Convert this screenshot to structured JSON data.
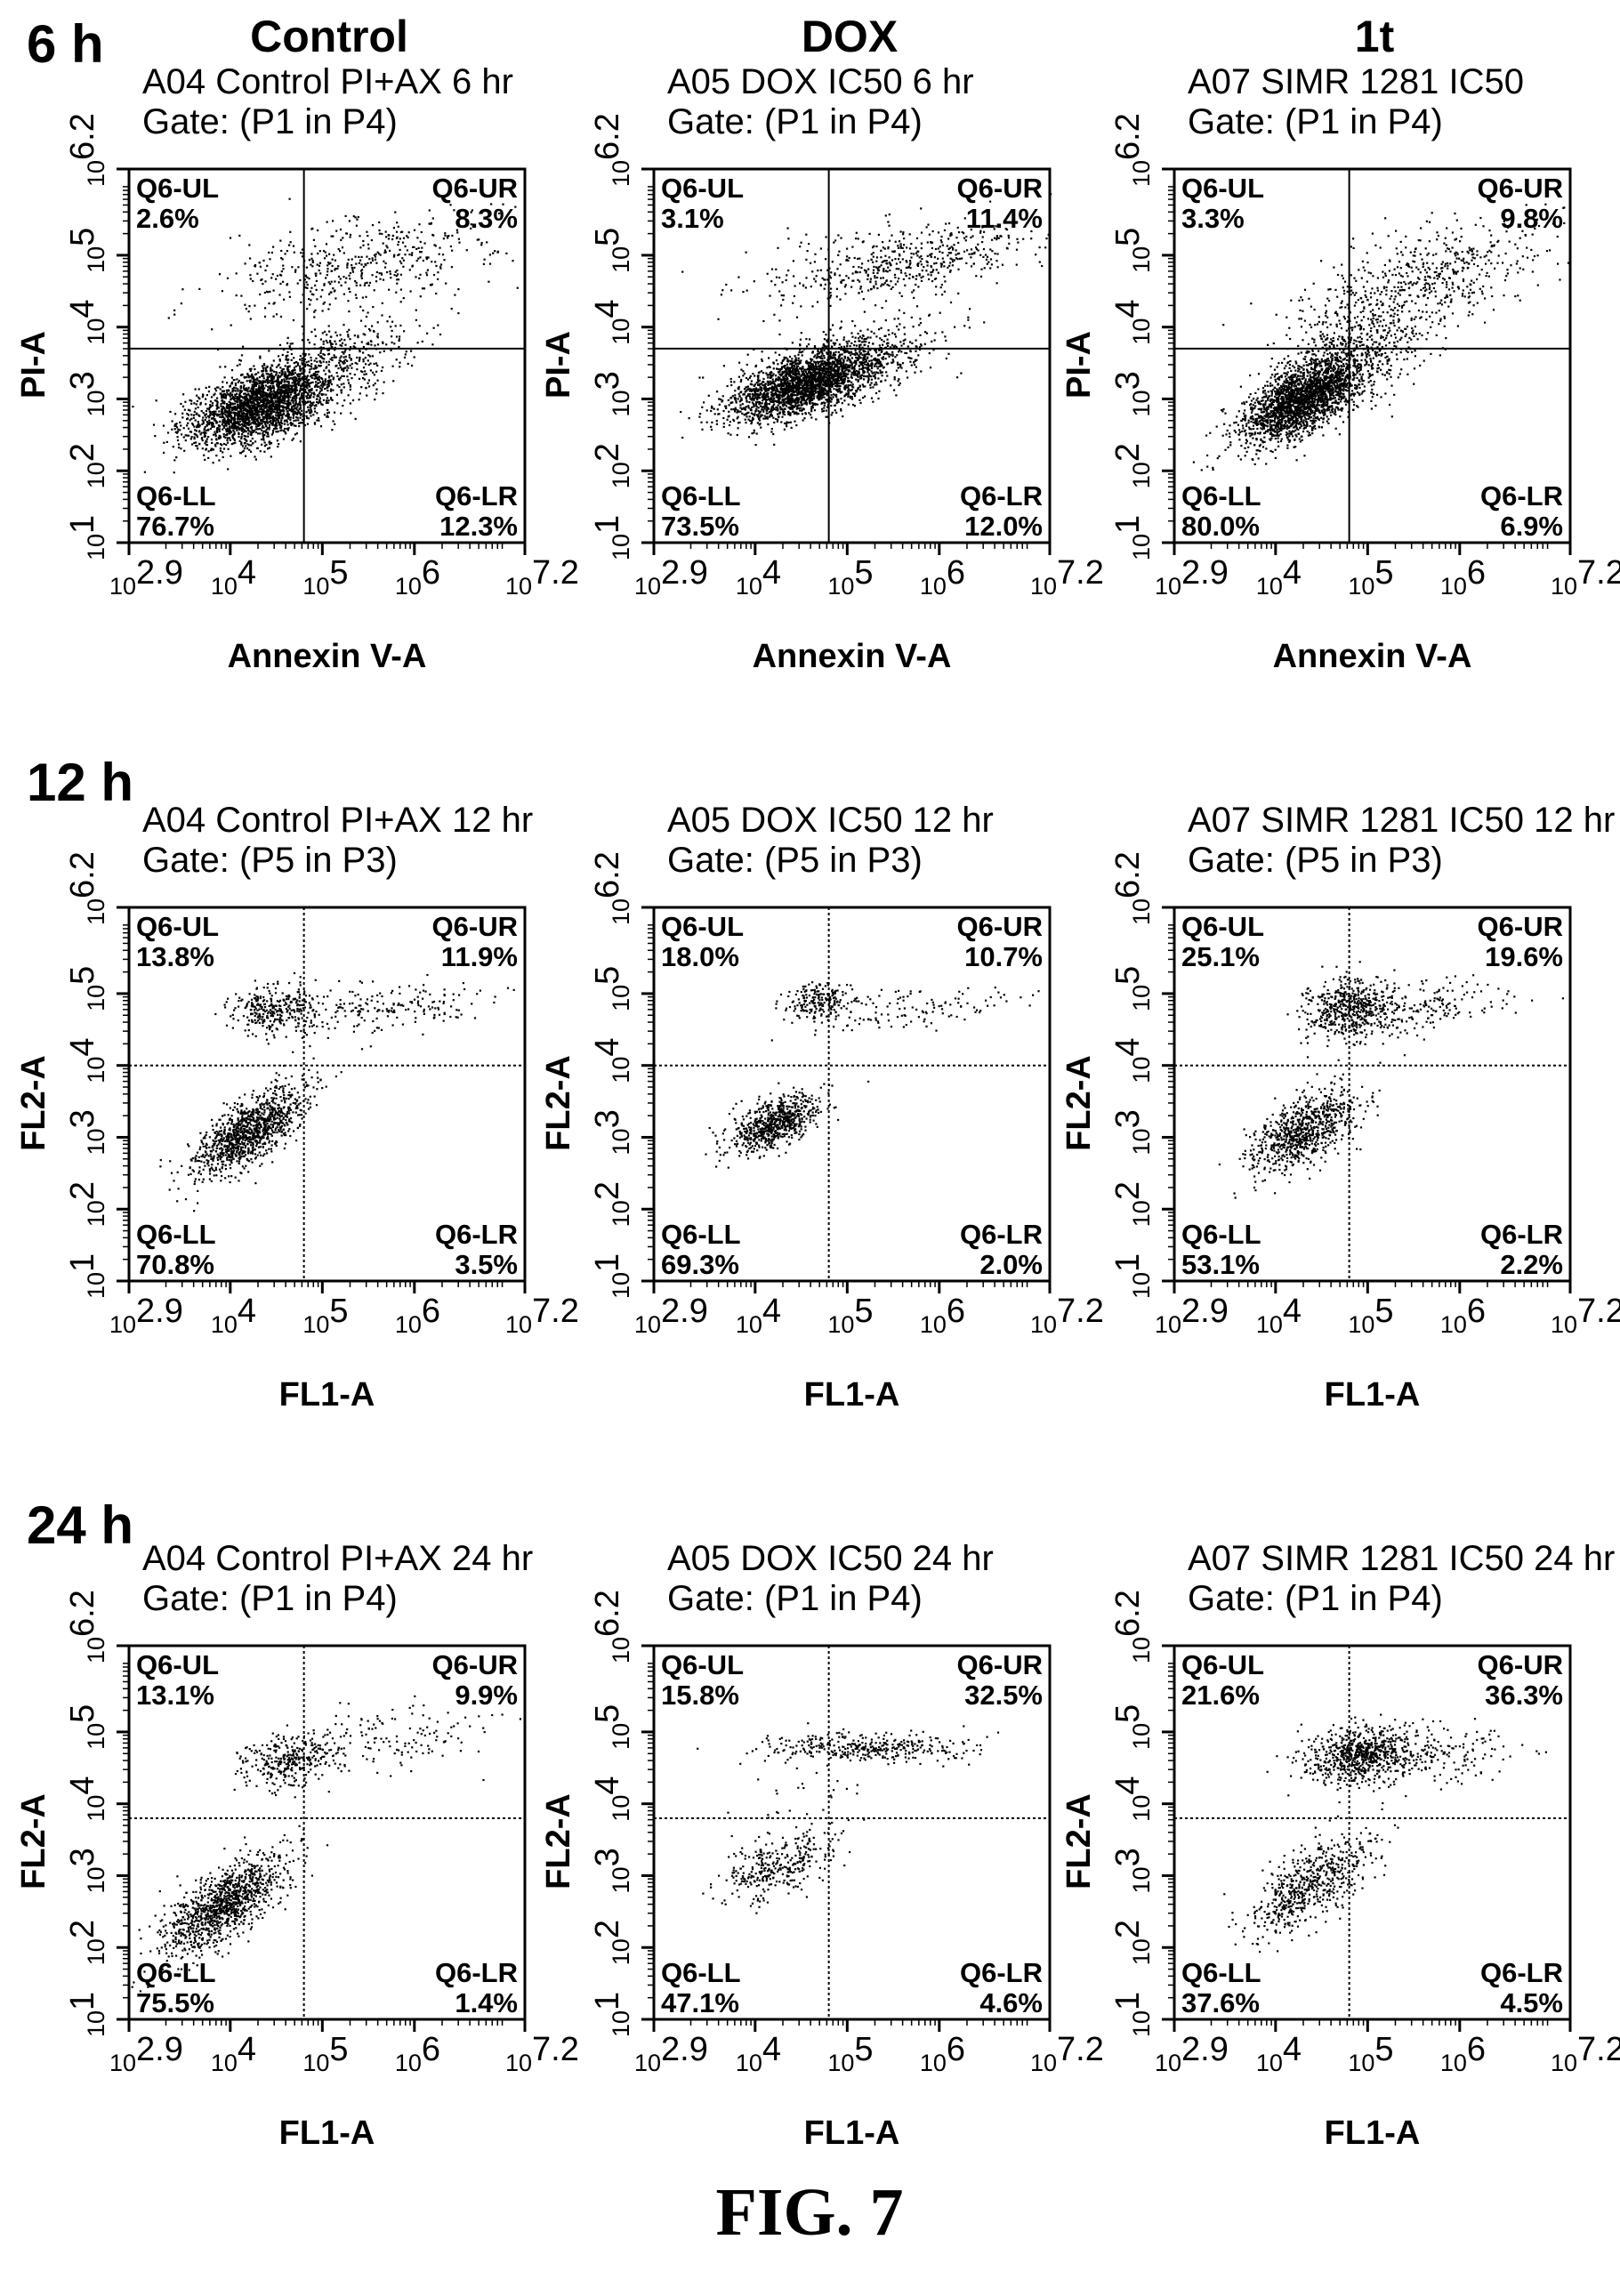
{
  "figure_caption": "FIG. 7",
  "columns": [
    "Control",
    "DOX",
    "1t"
  ],
  "rows": [
    {
      "label": "6 h",
      "ylabel": "PI-A",
      "xlabel": "Annexin V-A",
      "gate_style": "solid"
    },
    {
      "label": "12 h",
      "ylabel": "FL2-A",
      "xlabel": "FL1-A",
      "gate_style": "dotted"
    },
    {
      "label": "24 h",
      "ylabel": "FL2-A",
      "xlabel": "FL1-A",
      "gate_style": "dotted"
    }
  ],
  "chart_data": [
    {
      "type": "scatter",
      "title": "A04 Control PI+AX 6 hr",
      "subtitle": "Gate: (P1 in P4)",
      "xlabel": "Annexin V-A",
      "ylabel": "PI-A",
      "xscale": "log",
      "yscale": "log",
      "xlim_exp": [
        2.9,
        7.2
      ],
      "ylim_exp": [
        1,
        6.2
      ],
      "x_ticks": [
        "2.9",
        "4",
        "5",
        "6",
        "7.2"
      ],
      "y_ticks": [
        "1",
        "2",
        "3",
        "4",
        "5",
        "6.2"
      ],
      "gate_log10": {
        "x": 4.8,
        "y": 3.7
      },
      "quadrants": {
        "UL": {
          "name": "Q6-UL",
          "value": "2.6%"
        },
        "UR": {
          "name": "Q6-UR",
          "value": "8.3%"
        },
        "LL": {
          "name": "Q6-LL",
          "value": "76.7%"
        },
        "LR": {
          "name": "Q6-LR",
          "value": "12.3%"
        }
      },
      "populations": [
        {
          "x": 4.3,
          "y": 2.9,
          "sx": 0.38,
          "sy": 0.28,
          "n": 2200,
          "r": 0.5
        },
        {
          "x": 5.4,
          "y": 4.9,
          "sx": 0.8,
          "sy": 0.35,
          "n": 500,
          "r": 0.5
        },
        {
          "x": 4.9,
          "y": 3.4,
          "sx": 0.55,
          "sy": 0.35,
          "n": 600,
          "r": 0.6
        }
      ]
    },
    {
      "type": "scatter",
      "title": "A05 DOX IC50 6 hr",
      "subtitle": "Gate: (P1 in P4)",
      "xlabel": "Annexin V-A",
      "ylabel": "PI-A",
      "xscale": "log",
      "yscale": "log",
      "xlim_exp": [
        2.9,
        7.2
      ],
      "ylim_exp": [
        1,
        6.2
      ],
      "x_ticks": [
        "2.9",
        "4",
        "5",
        "6",
        "7.2"
      ],
      "y_ticks": [
        "1",
        "2",
        "3",
        "4",
        "5",
        "6.2"
      ],
      "gate_log10": {
        "x": 4.8,
        "y": 3.7
      },
      "quadrants": {
        "UL": {
          "name": "Q6-UL",
          "value": "3.1%"
        },
        "UR": {
          "name": "Q6-UR",
          "value": "11.4%"
        },
        "LL": {
          "name": "Q6-LL",
          "value": "73.5%"
        },
        "LR": {
          "name": "Q6-LR",
          "value": "12.0%"
        }
      },
      "populations": [
        {
          "x": 4.5,
          "y": 3.2,
          "sx": 0.4,
          "sy": 0.25,
          "n": 2100,
          "r": 0.6
        },
        {
          "x": 5.6,
          "y": 4.9,
          "sx": 0.75,
          "sy": 0.3,
          "n": 550,
          "r": 0.5
        },
        {
          "x": 5.0,
          "y": 3.5,
          "sx": 0.5,
          "sy": 0.3,
          "n": 600,
          "r": 0.5
        }
      ]
    },
    {
      "type": "scatter",
      "title": "A07 SIMR 1281 IC50",
      "subtitle": "Gate: (P1 in P4)",
      "xlabel": "Annexin V-A",
      "ylabel": "PI-A",
      "xscale": "log",
      "yscale": "log",
      "xlim_exp": [
        2.9,
        7.2
      ],
      "ylim_exp": [
        1,
        6.2
      ],
      "x_ticks": [
        "2.9",
        "4",
        "5",
        "6",
        "7.2"
      ],
      "y_ticks": [
        "1",
        "2",
        "3",
        "4",
        "5",
        "6.2"
      ],
      "gate_log10": {
        "x": 4.8,
        "y": 3.7
      },
      "quadrants": {
        "UL": {
          "name": "Q6-UL",
          "value": "3.3%"
        },
        "UR": {
          "name": "Q6-UR",
          "value": "9.8%"
        },
        "LL": {
          "name": "Q6-LL",
          "value": "80.0%"
        },
        "LR": {
          "name": "Q6-LR",
          "value": "6.9%"
        }
      },
      "populations": [
        {
          "x": 4.3,
          "y": 3.0,
          "sx": 0.33,
          "sy": 0.3,
          "n": 2200,
          "r": 0.65
        },
        {
          "x": 5.5,
          "y": 4.6,
          "sx": 0.7,
          "sy": 0.45,
          "n": 600,
          "r": 0.6
        },
        {
          "x": 4.8,
          "y": 3.6,
          "sx": 0.45,
          "sy": 0.35,
          "n": 500,
          "r": 0.5
        }
      ]
    },
    {
      "type": "scatter",
      "title": "A04 Control PI+AX 12 hr",
      "subtitle": "Gate: (P5 in P3)",
      "xlabel": "FL1-A",
      "ylabel": "FL2-A",
      "xscale": "log",
      "yscale": "log",
      "xlim_exp": [
        2.9,
        7.2
      ],
      "ylim_exp": [
        1,
        6.2
      ],
      "x_ticks": [
        "2.9",
        "4",
        "5",
        "6",
        "7.2"
      ],
      "y_ticks": [
        "1",
        "2",
        "3",
        "4",
        "5",
        "6.2"
      ],
      "gate_log10": {
        "x": 4.8,
        "y": 4.0
      },
      "quadrants": {
        "UL": {
          "name": "Q6-UL",
          "value": "13.8%"
        },
        "UR": {
          "name": "Q6-UR",
          "value": "11.9%"
        },
        "LL": {
          "name": "Q6-LL",
          "value": "70.8%"
        },
        "LR": {
          "name": "Q6-LR",
          "value": "3.5%"
        }
      },
      "populations": [
        {
          "x": 4.2,
          "y": 3.1,
          "sx": 0.3,
          "sy": 0.3,
          "n": 1100,
          "r": 0.7
        },
        {
          "x": 4.5,
          "y": 4.8,
          "sx": 0.25,
          "sy": 0.17,
          "n": 300,
          "r": 0.1
        },
        {
          "x": 5.7,
          "y": 4.8,
          "sx": 0.6,
          "sy": 0.2,
          "n": 200,
          "r": 0.4
        }
      ]
    },
    {
      "type": "scatter",
      "title": "A05 DOX IC50 12 hr",
      "subtitle": "Gate: (P5 in P3)",
      "xlabel": "FL1-A",
      "ylabel": "FL2-A",
      "xscale": "log",
      "yscale": "log",
      "xlim_exp": [
        2.9,
        7.2
      ],
      "ylim_exp": [
        1,
        6.2
      ],
      "x_ticks": [
        "2.9",
        "4",
        "5",
        "6",
        "7.2"
      ],
      "y_ticks": [
        "1",
        "2",
        "3",
        "4",
        "5",
        "6.2"
      ],
      "gate_log10": {
        "x": 4.8,
        "y": 4.0
      },
      "quadrants": {
        "UL": {
          "name": "Q6-UL",
          "value": "18.0%"
        },
        "UR": {
          "name": "Q6-UR",
          "value": "10.7%"
        },
        "LL": {
          "name": "Q6-LL",
          "value": "69.3%"
        },
        "LR": {
          "name": "Q6-LR",
          "value": "2.0%"
        }
      },
      "populations": [
        {
          "x": 4.2,
          "y": 3.2,
          "sx": 0.25,
          "sy": 0.2,
          "n": 700,
          "r": 0.6
        },
        {
          "x": 4.7,
          "y": 4.9,
          "sx": 0.2,
          "sy": 0.12,
          "n": 200,
          "r": 0.1
        },
        {
          "x": 5.7,
          "y": 4.8,
          "sx": 0.6,
          "sy": 0.15,
          "n": 120,
          "r": 0.3
        }
      ]
    },
    {
      "type": "scatter",
      "title": "A07 SIMR 1281 IC50 12 hr",
      "subtitle": "Gate: (P5 in P3)",
      "xlabel": "FL1-A",
      "ylabel": "FL2-A",
      "xscale": "log",
      "yscale": "log",
      "xlim_exp": [
        2.9,
        7.2
      ],
      "ylim_exp": [
        1,
        6.2
      ],
      "x_ticks": [
        "2.9",
        "4",
        "5",
        "6",
        "7.2"
      ],
      "y_ticks": [
        "1",
        "2",
        "3",
        "4",
        "5",
        "6.2"
      ],
      "gate_log10": {
        "x": 4.8,
        "y": 4.0
      },
      "quadrants": {
        "UL": {
          "name": "Q6-UL",
          "value": "25.1%"
        },
        "UR": {
          "name": "Q6-UR",
          "value": "19.6%"
        },
        "LL": {
          "name": "Q6-LL",
          "value": "53.1%"
        },
        "LR": {
          "name": "Q6-LR",
          "value": "2.2%"
        }
      },
      "populations": [
        {
          "x": 4.3,
          "y": 3.1,
          "sx": 0.28,
          "sy": 0.28,
          "n": 800,
          "r": 0.6
        },
        {
          "x": 4.8,
          "y": 4.8,
          "sx": 0.25,
          "sy": 0.2,
          "n": 500,
          "r": 0.1
        },
        {
          "x": 5.6,
          "y": 4.8,
          "sx": 0.5,
          "sy": 0.2,
          "n": 180,
          "r": 0.3
        }
      ]
    },
    {
      "type": "scatter",
      "title": "A04 Control PI+AX 24 hr",
      "subtitle": "Gate: (P1 in P4)",
      "xlabel": "FL1-A",
      "ylabel": "FL2-A",
      "xscale": "log",
      "yscale": "log",
      "xlim_exp": [
        2.9,
        7.2
      ],
      "ylim_exp": [
        1,
        6.2
      ],
      "x_ticks": [
        "2.9",
        "4",
        "5",
        "6",
        "7.2"
      ],
      "y_ticks": [
        "1",
        "2",
        "3",
        "4",
        "5",
        "6.2"
      ],
      "gate_log10": {
        "x": 4.8,
        "y": 3.8
      },
      "quadrants": {
        "UL": {
          "name": "Q6-UL",
          "value": "13.1%"
        },
        "UR": {
          "name": "Q6-UR",
          "value": "9.9%"
        },
        "LL": {
          "name": "Q6-LL",
          "value": "75.5%"
        },
        "LR": {
          "name": "Q6-LR",
          "value": "1.4%"
        }
      },
      "populations": [
        {
          "x": 3.9,
          "y": 2.6,
          "sx": 0.35,
          "sy": 0.35,
          "n": 1100,
          "r": 0.7
        },
        {
          "x": 4.6,
          "y": 4.6,
          "sx": 0.25,
          "sy": 0.18,
          "n": 300,
          "r": 0.2
        },
        {
          "x": 5.6,
          "y": 4.9,
          "sx": 0.6,
          "sy": 0.25,
          "n": 160,
          "r": 0.3
        }
      ]
    },
    {
      "type": "scatter",
      "title": "A05 DOX IC50 24 hr",
      "subtitle": "Gate: (P1 in P4)",
      "xlabel": "FL1-A",
      "ylabel": "FL2-A",
      "xscale": "log",
      "yscale": "log",
      "xlim_exp": [
        2.9,
        7.2
      ],
      "ylim_exp": [
        1,
        6.2
      ],
      "x_ticks": [
        "2.9",
        "4",
        "5",
        "6",
        "7.2"
      ],
      "y_ticks": [
        "1",
        "2",
        "3",
        "4",
        "5",
        "6.2"
      ],
      "gate_log10": {
        "x": 4.8,
        "y": 3.8
      },
      "quadrants": {
        "UL": {
          "name": "Q6-UL",
          "value": "15.8%"
        },
        "UR": {
          "name": "Q6-UR",
          "value": "32.5%"
        },
        "LL": {
          "name": "Q6-LL",
          "value": "47.1%"
        },
        "LR": {
          "name": "Q6-LR",
          "value": "4.6%"
        }
      },
      "populations": [
        {
          "x": 4.2,
          "y": 3.1,
          "sx": 0.3,
          "sy": 0.22,
          "n": 300,
          "r": 0.5
        },
        {
          "x": 5.2,
          "y": 4.8,
          "sx": 0.55,
          "sy": 0.1,
          "n": 350,
          "r": 0.0
        },
        {
          "x": 4.6,
          "y": 4.0,
          "sx": 0.3,
          "sy": 0.5,
          "n": 60,
          "r": 0.0
        }
      ]
    },
    {
      "type": "scatter",
      "title": "A07 SIMR 1281 IC50 24 hr",
      "subtitle": "Gate: (P1 in P4)",
      "xlabel": "FL1-A",
      "ylabel": "FL2-A",
      "xscale": "log",
      "yscale": "log",
      "xlim_exp": [
        2.9,
        7.2
      ],
      "ylim_exp": [
        1,
        6.2
      ],
      "x_ticks": [
        "2.9",
        "4",
        "5",
        "6",
        "7.2"
      ],
      "y_ticks": [
        "1",
        "2",
        "3",
        "4",
        "5",
        "6.2"
      ],
      "gate_log10": {
        "x": 4.8,
        "y": 3.8
      },
      "quadrants": {
        "UL": {
          "name": "Q6-UL",
          "value": "21.6%"
        },
        "UR": {
          "name": "Q6-UR",
          "value": "36.3%"
        },
        "LL": {
          "name": "Q6-LL",
          "value": "37.6%"
        },
        "LR": {
          "name": "Q6-LR",
          "value": "4.5%"
        }
      },
      "populations": [
        {
          "x": 4.4,
          "y": 2.9,
          "sx": 0.35,
          "sy": 0.35,
          "n": 600,
          "r": 0.7
        },
        {
          "x": 4.9,
          "y": 4.7,
          "sx": 0.3,
          "sy": 0.2,
          "n": 700,
          "r": 0.2
        },
        {
          "x": 5.7,
          "y": 4.7,
          "sx": 0.5,
          "sy": 0.2,
          "n": 180,
          "r": 0.2
        }
      ]
    }
  ]
}
